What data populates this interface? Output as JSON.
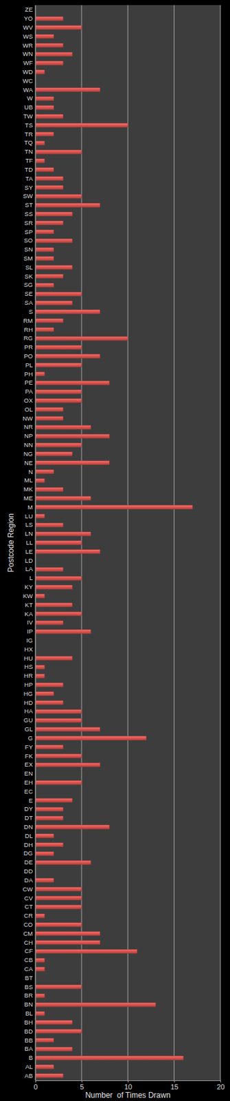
{
  "chart_data": {
    "type": "bar",
    "orientation": "horizontal",
    "xlabel": "Number  of Times Drawn",
    "ylabel": "Postcode Region",
    "categories": [
      "AB",
      "AL",
      "B",
      "BA",
      "BB",
      "BD",
      "BH",
      "BL",
      "BN",
      "BR",
      "BS",
      "BT",
      "CA",
      "CB",
      "CF",
      "CH",
      "CM",
      "CO",
      "CR",
      "CT",
      "CV",
      "CW",
      "DA",
      "DD",
      "DE",
      "DG",
      "DH",
      "DL",
      "DN",
      "DT",
      "DY",
      "E",
      "EC",
      "EH",
      "EN",
      "EX",
      "FK",
      "FY",
      "G",
      "GL",
      "GU",
      "HA",
      "HD",
      "HG",
      "HP",
      "HR",
      "HS",
      "HU",
      "HX",
      "IG",
      "IP",
      "IV",
      "KA",
      "KT",
      "KW",
      "KY",
      "L",
      "LA",
      "LD",
      "LE",
      "LL",
      "LN",
      "LS",
      "LU",
      "M",
      "ME",
      "MK",
      "ML",
      "N",
      "NE",
      "NG",
      "NN",
      "NP",
      "NR",
      "NW",
      "OL",
      "OX",
      "PA",
      "PE",
      "PH",
      "PL",
      "PO",
      "PR",
      "RG",
      "RH",
      "RM",
      "S",
      "SA",
      "SE",
      "SG",
      "SK",
      "SL",
      "SM",
      "SN",
      "SO",
      "SP",
      "SR",
      "SS",
      "ST",
      "SW",
      "SY",
      "TA",
      "TD",
      "TF",
      "TN",
      "TQ",
      "TR",
      "TS",
      "TW",
      "UB",
      "W",
      "WA",
      "WC",
      "WD",
      "WF",
      "WN",
      "WR",
      "WS",
      "WV",
      "YO",
      "ZE"
    ],
    "values": [
      3,
      2,
      16,
      4,
      2,
      5,
      4,
      1,
      13,
      1,
      5,
      0,
      1,
      1,
      11,
      7,
      7,
      5,
      1,
      5,
      5,
      5,
      2,
      0,
      6,
      2,
      3,
      2,
      8,
      3,
      3,
      4,
      0,
      5,
      0,
      7,
      5,
      3,
      12,
      7,
      5,
      5,
      3,
      2,
      3,
      1,
      1,
      4,
      0,
      0,
      6,
      3,
      5,
      4,
      1,
      4,
      5,
      3,
      0,
      7,
      5,
      6,
      3,
      1,
      17,
      6,
      3,
      1,
      2,
      8,
      4,
      5,
      8,
      6,
      3,
      3,
      5,
      5,
      8,
      1,
      5,
      7,
      5,
      10,
      2,
      3,
      7,
      4,
      5,
      2,
      3,
      4,
      2,
      2,
      4,
      2,
      3,
      4,
      7,
      5,
      3,
      3,
      2,
      1,
      5,
      1,
      2,
      10,
      3,
      2,
      2,
      7,
      0,
      1,
      3,
      4,
      3,
      2,
      5,
      3,
      0
    ],
    "color": "#d9534f",
    "xlim": [
      0,
      20
    ],
    "xticks": [
      0,
      5,
      10,
      15,
      20
    ],
    "grid": true
  }
}
